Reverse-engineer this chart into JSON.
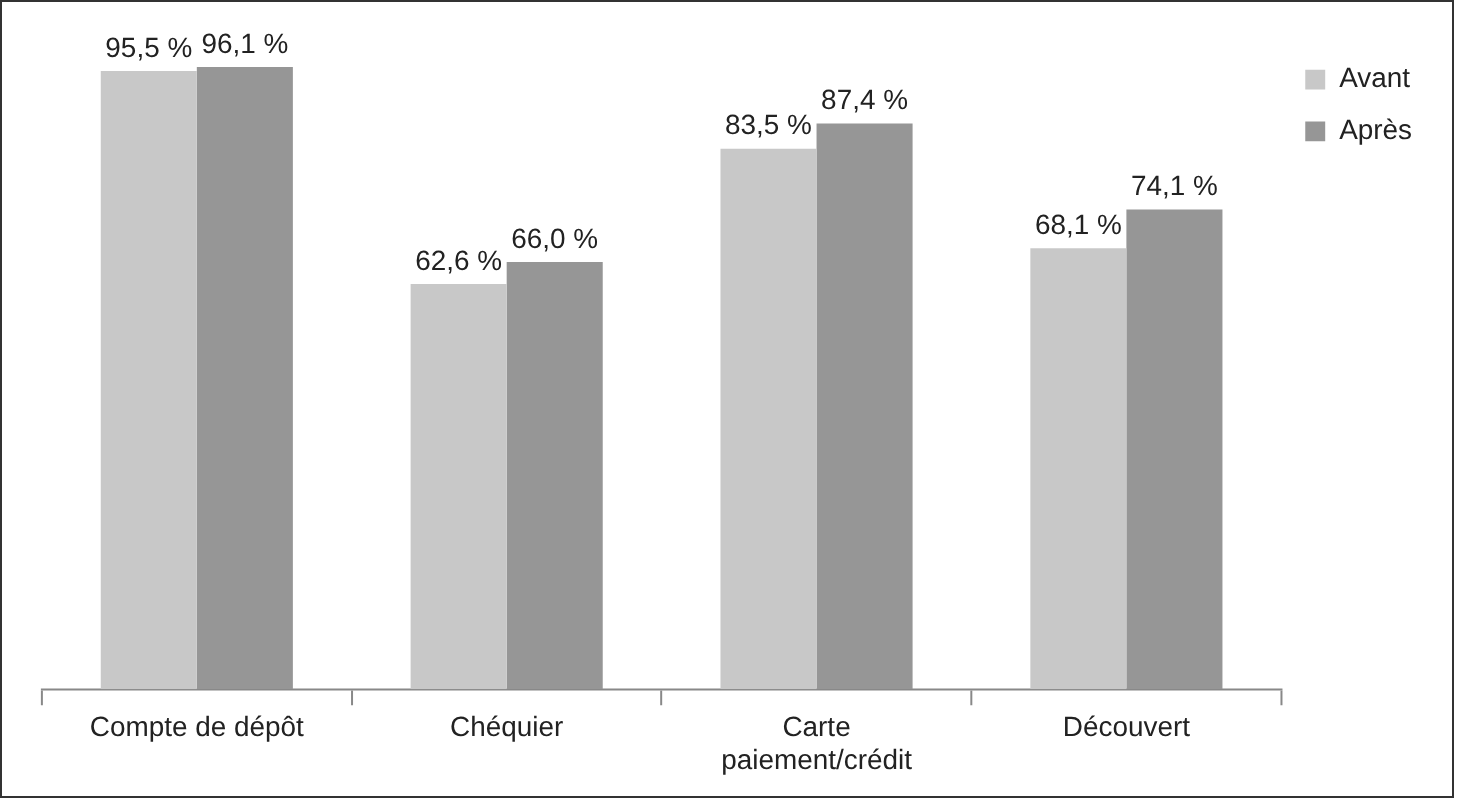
{
  "chart_data": {
    "type": "bar",
    "categories": [
      "Compte de dépôt",
      "Chéquier",
      "Carte paiement/crédit",
      "Découvert"
    ],
    "series": [
      {
        "name": "Avant",
        "color": "#c8c8c8",
        "values": [
          95.5,
          62.6,
          83.5,
          68.1
        ],
        "value_labels": [
          "95,5 %",
          "62,6 %",
          "83,5 %",
          "68,1 %"
        ]
      },
      {
        "name": "Après",
        "color": "#969696",
        "values": [
          96.1,
          66.0,
          87.4,
          74.1
        ],
        "value_labels": [
          "96,1 %",
          "66,0 %",
          "87,4 %",
          "74,1 %"
        ]
      }
    ],
    "legend": "top right",
    "grid": false
  }
}
